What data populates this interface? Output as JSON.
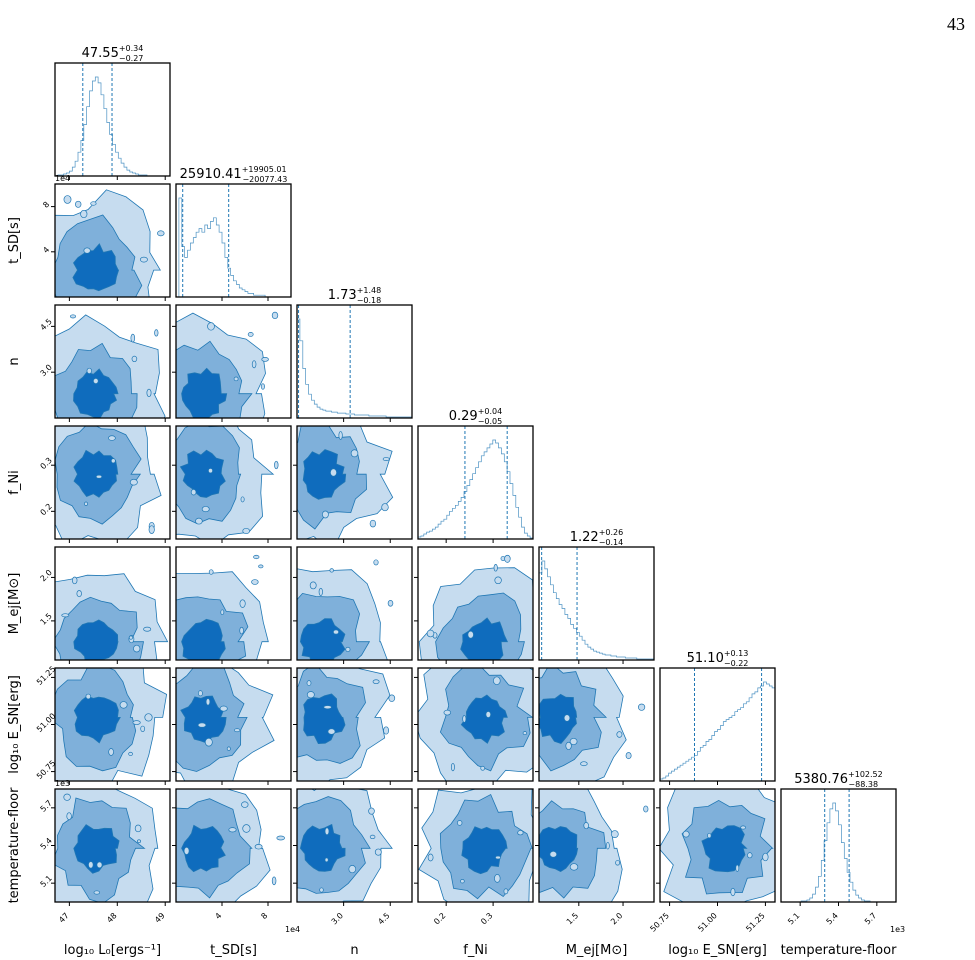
{
  "page_number": "43",
  "colors": {
    "fill_outer": "#c6dcef",
    "fill_mid": "#7fb0da",
    "fill_inner": "#0f6cbd",
    "line": "#1f77b4",
    "axis": "#000000"
  },
  "chart_data": {
    "type": "corner",
    "parameters": [
      {
        "id": "logL0",
        "axis_label": "log₁₀ L₀[ergs⁻¹]",
        "median": "47.55",
        "plus": "+0.34",
        "minus": "−0.27",
        "range": [
          46.7,
          49.1
        ],
        "ticks": [
          47,
          48,
          49
        ],
        "tick_labels": [
          "47",
          "48",
          "49"
        ],
        "multiplier": "",
        "hist": [
          0,
          1,
          1,
          2,
          3,
          5,
          9,
          15,
          24,
          36,
          52,
          70,
          86,
          96,
          100,
          94,
          82,
          68,
          54,
          42,
          32,
          24,
          18,
          13,
          9,
          6,
          4,
          3,
          2,
          1,
          1,
          1,
          0,
          0,
          0,
          0,
          0,
          0,
          0,
          0
        ],
        "q": [
          47.28,
          47.89
        ]
      },
      {
        "id": "tSD",
        "axis_label": "t_SD[s]",
        "median": "25910.41",
        "plus": "+19905.01",
        "minus": "−20077.43",
        "range": [
          0,
          100000
        ],
        "ticks": [
          40000,
          80000
        ],
        "tick_labels": [
          "4",
          "8"
        ],
        "multiplier": "1e4",
        "hist": [
          0,
          55,
          28,
          22,
          26,
          30,
          33,
          36,
          38,
          36,
          40,
          38,
          42,
          44,
          40,
          36,
          30,
          22,
          16,
          12,
          9,
          7,
          5,
          4,
          3,
          2,
          2,
          1,
          1,
          1,
          1,
          0,
          0,
          0,
          0,
          0,
          0,
          0,
          0,
          0
        ],
        "q": [
          5833,
          45815
        ]
      },
      {
        "id": "n",
        "axis_label": "n",
        "median": "1.73",
        "plus": "+1.48",
        "minus": "−0.18",
        "range": [
          1.5,
          5.2
        ],
        "ticks": [
          3.0,
          4.5
        ],
        "tick_labels": [
          "3.0",
          "4.5"
        ],
        "multiplier": "",
        "hist": [
          100,
          78,
          50,
          34,
          24,
          18,
          14,
          11,
          9,
          8,
          7,
          7,
          6,
          6,
          5,
          5,
          5,
          4,
          4,
          4,
          3,
          3,
          3,
          3,
          3,
          2,
          2,
          2,
          2,
          2,
          2,
          1,
          1,
          1,
          1,
          1,
          1,
          1,
          1,
          1
        ],
        "q": [
          1.55,
          3.21
        ]
      },
      {
        "id": "fNi",
        "axis_label": "f_Ni",
        "median": "0.29",
        "plus": "+0.04",
        "minus": "−0.05",
        "range": [
          0.14,
          0.385
        ],
        "ticks": [
          0.2,
          0.3
        ],
        "tick_labels": [
          "0.2",
          "0.3"
        ],
        "multiplier": "",
        "hist": [
          2,
          3,
          5,
          7,
          8,
          10,
          12,
          15,
          18,
          20,
          24,
          28,
          31,
          34,
          38,
          42,
          48,
          54,
          60,
          66,
          72,
          78,
          84,
          88,
          92,
          96,
          100,
          97,
          92,
          86,
          78,
          68,
          56,
          44,
          32,
          22,
          12,
          6,
          3,
          1
        ],
        "q": [
          0.24,
          0.33
        ]
      },
      {
        "id": "Mej",
        "axis_label": "M_ej[M⊙]",
        "median": "1.22",
        "plus": "+0.26",
        "minus": "−0.14",
        "range": [
          1.05,
          2.35
        ],
        "ticks": [
          1.5,
          2.0
        ],
        "tick_labels": [
          "1.5",
          "2.0"
        ],
        "multiplier": "",
        "hist": [
          88,
          100,
          92,
          84,
          76,
          68,
          62,
          56,
          52,
          46,
          42,
          36,
          32,
          28,
          24,
          20,
          16,
          13,
          11,
          9,
          8,
          7,
          6,
          5,
          5,
          4,
          4,
          3,
          3,
          3,
          2,
          2,
          2,
          2,
          1,
          1,
          1,
          1,
          1,
          1
        ],
        "q": [
          1.08,
          1.48
        ]
      },
      {
        "id": "logESN",
        "axis_label": "log₁₀ E_SN[erg]",
        "median": "51.10",
        "plus": "+0.13",
        "minus": "−0.22",
        "range": [
          50.7,
          51.3
        ],
        "ticks": [
          50.75,
          51.0,
          51.25
        ],
        "tick_labels": [
          "50.75",
          "51.00",
          "51.25"
        ],
        "multiplier": "",
        "hist": [
          2,
          3,
          5,
          8,
          10,
          12,
          14,
          16,
          18,
          20,
          22,
          24,
          26,
          30,
          34,
          36,
          40,
          42,
          46,
          50,
          52,
          56,
          60,
          62,
          64,
          66,
          70,
          72,
          74,
          78,
          80,
          84,
          88,
          90,
          94,
          96,
          100,
          98,
          96,
          94
        ],
        "q": [
          50.88,
          51.23
        ]
      },
      {
        "id": "Tfloor",
        "axis_label": "temperature-floor",
        "median": "5380.76",
        "plus": "+102.52",
        "minus": "−88.38",
        "range": [
          4950,
          5850
        ],
        "ticks": [
          5100,
          5400,
          5700
        ],
        "tick_labels": [
          "5.1",
          "5.4",
          "5.7"
        ],
        "multiplier": "1e3",
        "hist": [
          0,
          0,
          0,
          0,
          0,
          0,
          0,
          1,
          1,
          2,
          4,
          8,
          15,
          26,
          42,
          62,
          80,
          94,
          100,
          92,
          78,
          60,
          44,
          30,
          20,
          12,
          7,
          4,
          2,
          1,
          1,
          0,
          0,
          0,
          0,
          0,
          0,
          0,
          0,
          0
        ],
        "q": [
          5292,
          5483
        ]
      }
    ],
    "contour_levels": [
      "outer",
      "middle",
      "inner"
    ]
  }
}
